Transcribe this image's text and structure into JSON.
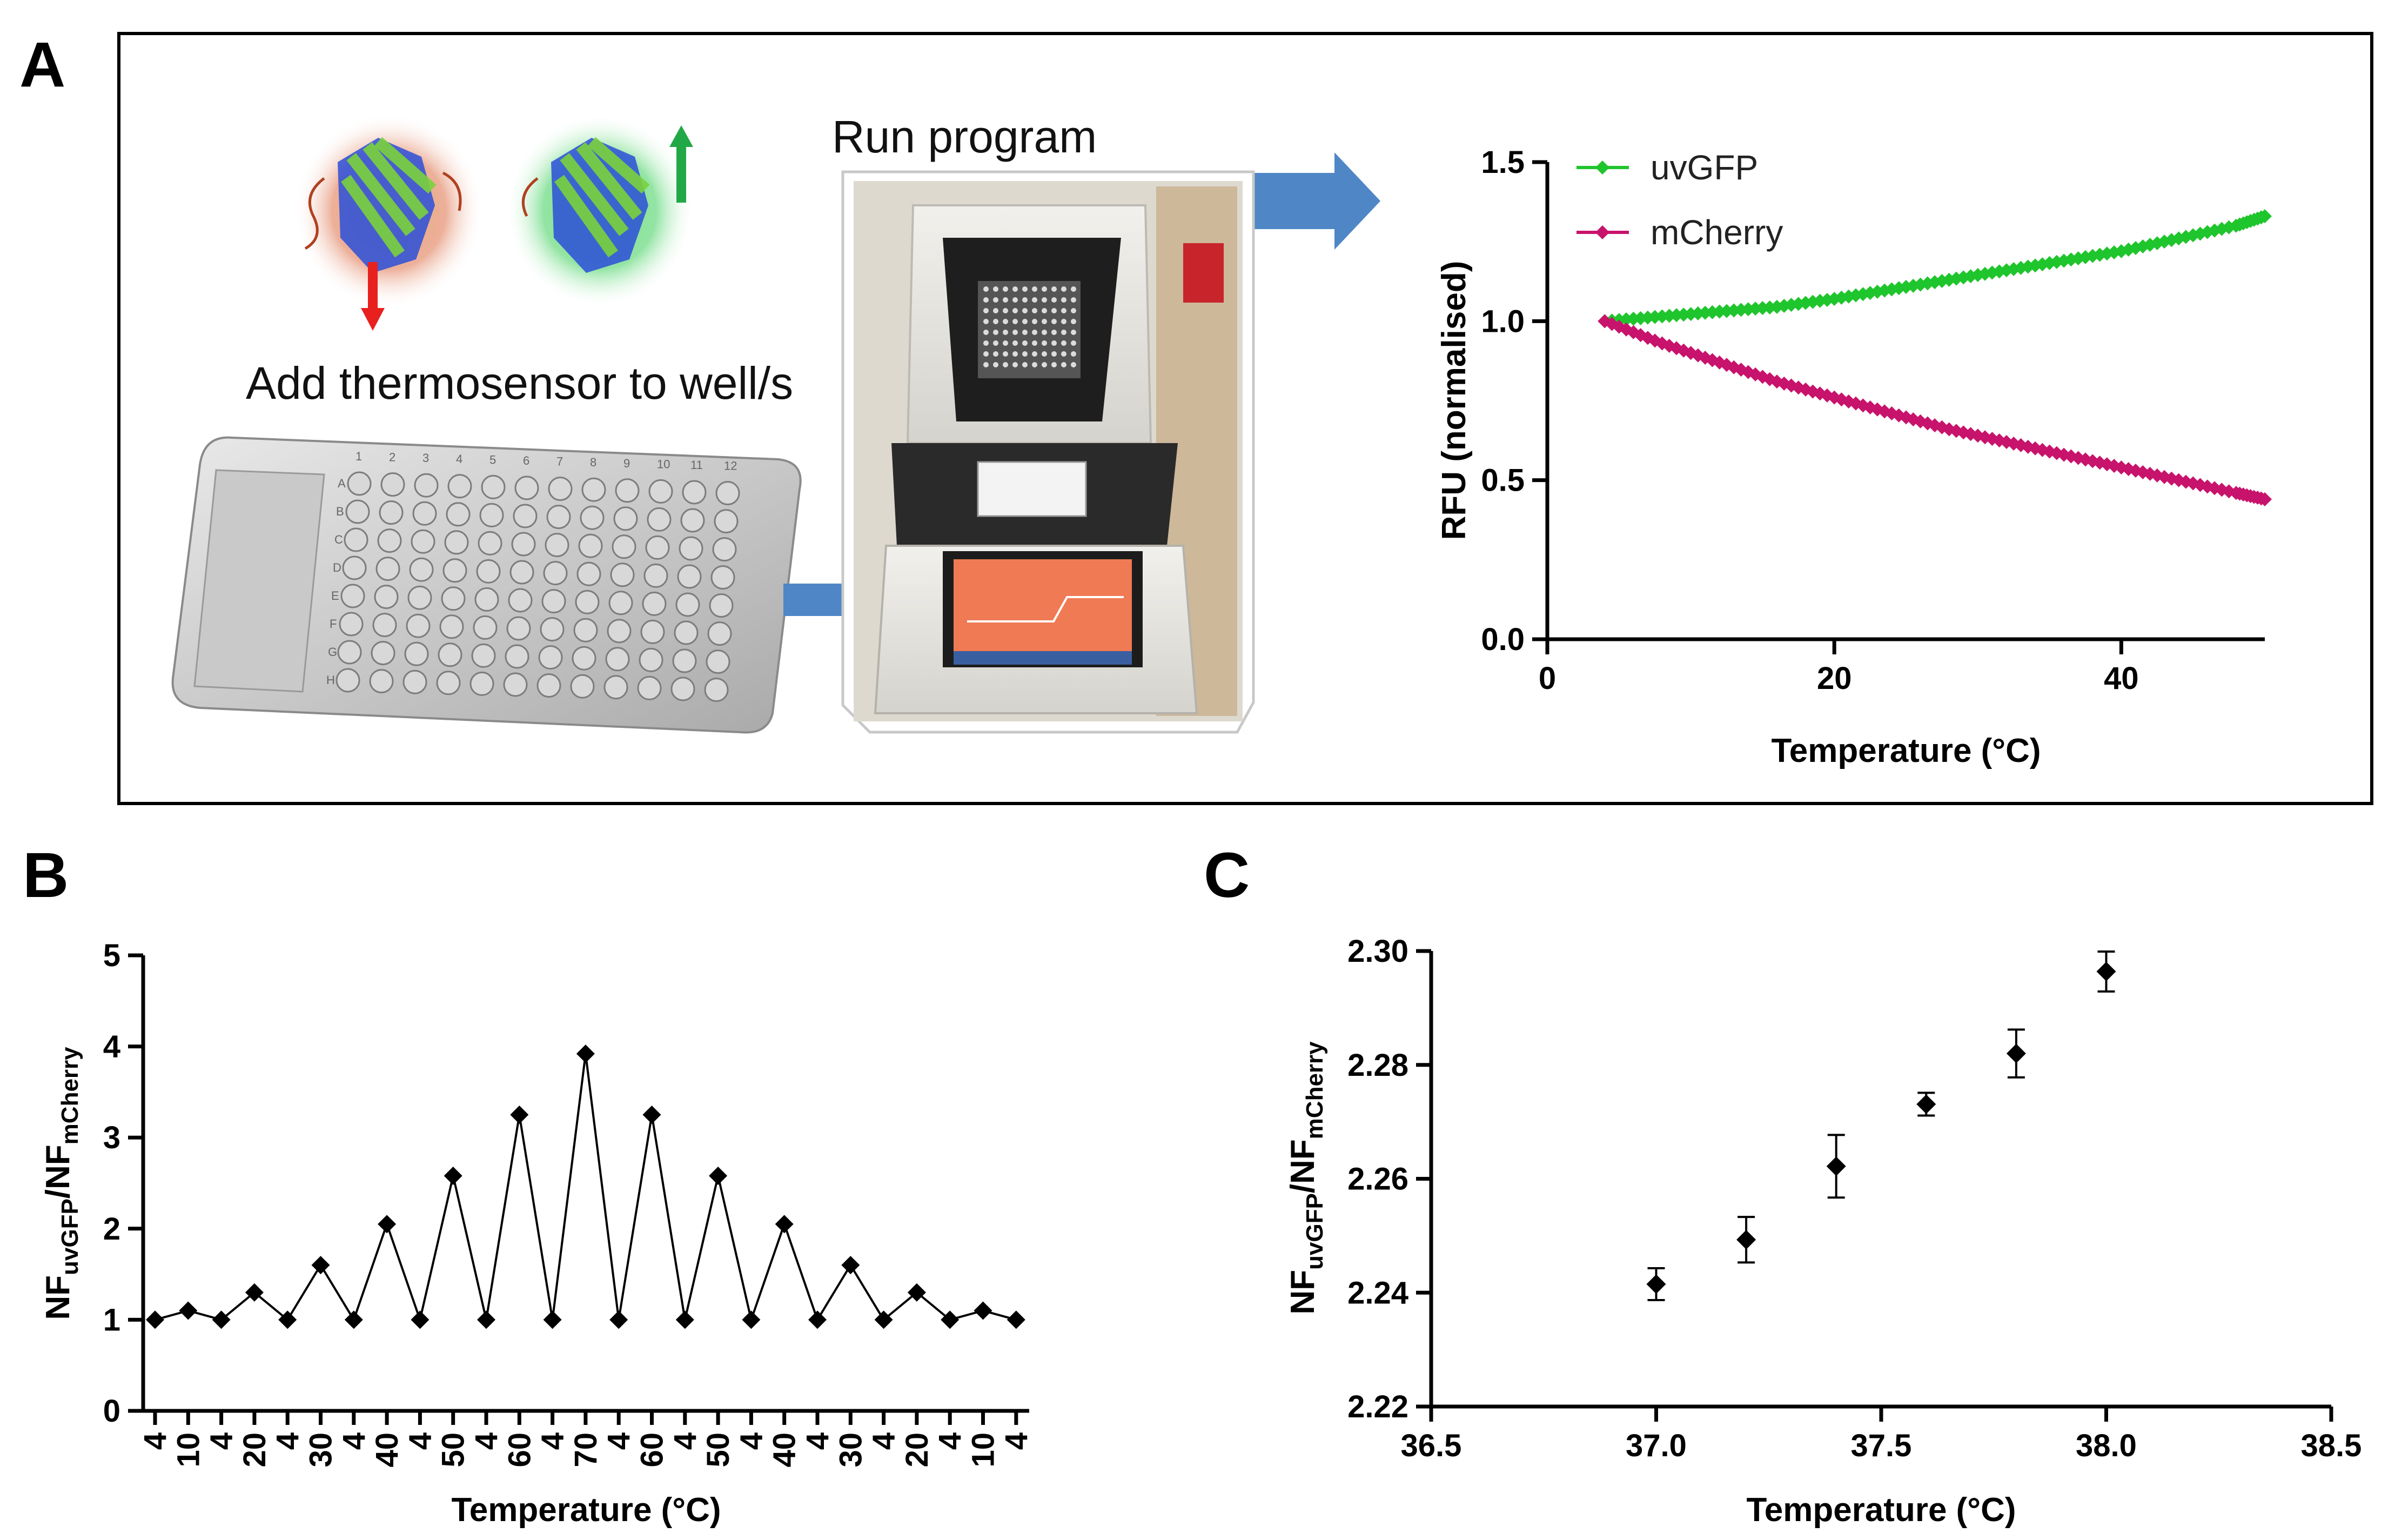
{
  "panels": {
    "a": {
      "letter": "A",
      "step_add": "Add thermosensor to well/s",
      "step_run": "Run program",
      "plate_rows": [
        "A",
        "B",
        "C",
        "D",
        "E",
        "F",
        "G",
        "H"
      ],
      "plate_cols": [
        "1",
        "2",
        "3",
        "4",
        "5",
        "6",
        "7",
        "8",
        "9",
        "10",
        "11",
        "12"
      ]
    },
    "b": {
      "letter": "B"
    },
    "c": {
      "letter": "C"
    }
  },
  "colors": {
    "uvGFP": "#1fc52c",
    "mCherry": "#c8136c",
    "arrow_blue": "#4f86c6",
    "arrow_red": "#e8201e",
    "arrow_green": "#22a846"
  },
  "chart_data": [
    {
      "id": "A",
      "type": "line",
      "title": "",
      "xlabel": "Temperature (°C)",
      "ylabel": "RFU (normalised)",
      "xlim": [
        0,
        50
      ],
      "ylim": [
        0,
        1.5
      ],
      "xticks": [
        "0",
        "20",
        "40"
      ],
      "yticks": [
        "0.0",
        "0.5",
        "1.0",
        "1.5"
      ],
      "legend_position": "top-left",
      "series": [
        {
          "name": "uvGFP",
          "color": "#1fc52c",
          "x": [
            4,
            8,
            12,
            16,
            20,
            24,
            28,
            32,
            36,
            40,
            44,
            48,
            50
          ],
          "y": [
            1.0,
            1.015,
            1.03,
            1.045,
            1.07,
            1.1,
            1.13,
            1.16,
            1.19,
            1.22,
            1.26,
            1.3,
            1.33
          ]
        },
        {
          "name": "mCherry",
          "color": "#c8136c",
          "x": [
            4,
            8,
            12,
            16,
            20,
            24,
            28,
            32,
            36,
            40,
            44,
            48,
            50
          ],
          "y": [
            1.0,
            0.93,
            0.87,
            0.81,
            0.76,
            0.71,
            0.66,
            0.62,
            0.58,
            0.54,
            0.5,
            0.46,
            0.44
          ]
        }
      ]
    },
    {
      "id": "B",
      "type": "line",
      "title": "",
      "xlabel": "Temperature (°C)",
      "ylabel_main": "NF",
      "ylabel_sub1": "uvGFP",
      "ylabel_mid": "/NF",
      "ylabel_sub2": "mCherry",
      "ylim": [
        0,
        5
      ],
      "yticks": [
        "0",
        "1",
        "2",
        "3",
        "4",
        "5"
      ],
      "categories": [
        "4",
        "10",
        "4",
        "20",
        "4",
        "30",
        "4",
        "40",
        "4",
        "50",
        "4",
        "60",
        "4",
        "70",
        "4",
        "60",
        "4",
        "50",
        "4",
        "40",
        "4",
        "30",
        "4",
        "20",
        "4",
        "10",
        "4"
      ],
      "values": [
        1.0,
        1.1,
        1.0,
        1.3,
        1.0,
        1.6,
        1.0,
        2.05,
        1.0,
        2.58,
        1.0,
        3.25,
        1.0,
        3.92,
        1.0,
        3.25,
        1.0,
        2.58,
        1.0,
        2.05,
        1.0,
        1.6,
        1.0,
        1.3,
        1.0,
        1.1,
        1.0
      ]
    },
    {
      "id": "C",
      "type": "scatter",
      "title": "",
      "xlabel": "Temperature (°C)",
      "ylabel_main": "NF",
      "ylabel_sub1": "uvGFP",
      "ylabel_mid": "/NF",
      "ylabel_sub2": "mCherry",
      "xlim": [
        36.5,
        38.5
      ],
      "ylim": [
        2.22,
        2.3
      ],
      "xticks": [
        "36.5",
        "37.0",
        "37.5",
        "38.0",
        "38.5"
      ],
      "yticks": [
        "2.22",
        "2.24",
        "2.26",
        "2.28",
        "2.30"
      ],
      "x": [
        37.0,
        37.2,
        37.4,
        37.6,
        37.8,
        38.0
      ],
      "y": [
        2.2415,
        2.2493,
        2.2622,
        2.2731,
        2.282,
        2.2964
      ],
      "err": [
        0.0028,
        0.004,
        0.0055,
        0.002,
        0.0042,
        0.0035
      ]
    }
  ]
}
